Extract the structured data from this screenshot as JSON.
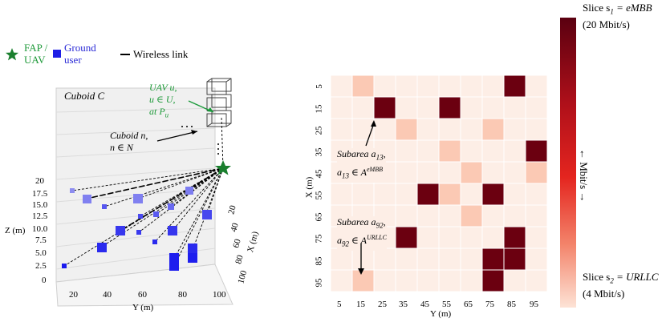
{
  "legend": {
    "fap_label_line1": "FAP /",
    "fap_label_line2": "UAV",
    "user_label_line1": "Ground",
    "user_label_line2": "user",
    "link_label": "Wireless link",
    "fap_color": "#1a7f2e",
    "user_color": "#1e1ee6"
  },
  "left_panel": {
    "cuboid_c": "Cuboid C",
    "uav_line1": "UAV u,",
    "uav_line2": "u ∈ U,",
    "uav_line3": "at P",
    "uav_sub": "u",
    "cuboid_n_line1": "Cuboid n,",
    "cuboid_n_line2": "n ∈ N",
    "dots": "• • •",
    "z_label": "Z (m)",
    "y_label": "Y (m)",
    "x_label": "X (m)",
    "z_ticks": [
      "0",
      "2.5",
      "5.0",
      "7.5",
      "10.0",
      "12.5",
      "15.0",
      "17.5",
      "20"
    ],
    "y_ticks": [
      "20",
      "40",
      "60",
      "80",
      "100"
    ],
    "x_ticks": [
      "20",
      "40",
      "60",
      "80",
      "100"
    ]
  },
  "heatmap": {
    "y_axis_label": "X (m)",
    "x_axis_label": "Y (m)",
    "row_labels": [
      "5",
      "15",
      "25",
      "35",
      "45",
      "55",
      "65",
      "75",
      "85",
      "95"
    ],
    "col_labels": [
      "5",
      "15",
      "25",
      "35",
      "45",
      "55",
      "65",
      "75",
      "85",
      "95"
    ],
    "grid": [
      [
        0,
        1,
        0,
        0,
        0,
        0,
        0,
        0,
        2,
        0
      ],
      [
        0,
        0,
        2,
        0,
        0,
        2,
        0,
        0,
        0,
        0
      ],
      [
        0,
        0,
        0,
        1,
        0,
        0,
        0,
        1,
        0,
        0
      ],
      [
        0,
        0,
        0,
        0,
        0,
        1,
        0,
        0,
        0,
        2
      ],
      [
        0,
        0,
        0,
        0,
        0,
        0,
        1,
        0,
        0,
        1
      ],
      [
        0,
        0,
        0,
        0,
        2,
        1,
        0,
        2,
        0,
        0
      ],
      [
        0,
        0,
        0,
        0,
        0,
        0,
        1,
        0,
        0,
        0
      ],
      [
        0,
        0,
        0,
        2,
        0,
        0,
        0,
        0,
        2,
        0
      ],
      [
        0,
        0,
        0,
        0,
        0,
        0,
        0,
        2,
        2,
        0
      ],
      [
        0,
        1,
        0,
        0,
        0,
        0,
        0,
        2,
        0,
        0
      ]
    ],
    "colors": {
      "empty": "#fdeee6",
      "urllc": "#fbc9b4",
      "embb": "#6b0010"
    },
    "annotation_a13_line1": "Subarea a",
    "annotation_a13_sub": "13",
    "annotation_a13_line2": "a",
    "annotation_a13_set": "∈ A",
    "annotation_a13_sup": "eMBB",
    "annotation_a92_line1": "Subarea a",
    "annotation_a92_sub": "92",
    "annotation_a92_line2": "a",
    "annotation_a92_set": "∈ A",
    "annotation_a92_sup": "URLLC"
  },
  "colorbar": {
    "top_line1": "Slice s",
    "top_sub": "1",
    "top_rest": " = eMBB",
    "top_line2": "(20 Mbit/s)",
    "bottom_line1": "Slice s",
    "bottom_sub": "2",
    "bottom_rest": " = URLLC",
    "bottom_line2": "(4 Mbit/s)",
    "axis_label": "← Mbit/s →",
    "top_color": "#5a0010",
    "mid_color": "#e4251f",
    "bottom_color": "#fde3d6"
  }
}
